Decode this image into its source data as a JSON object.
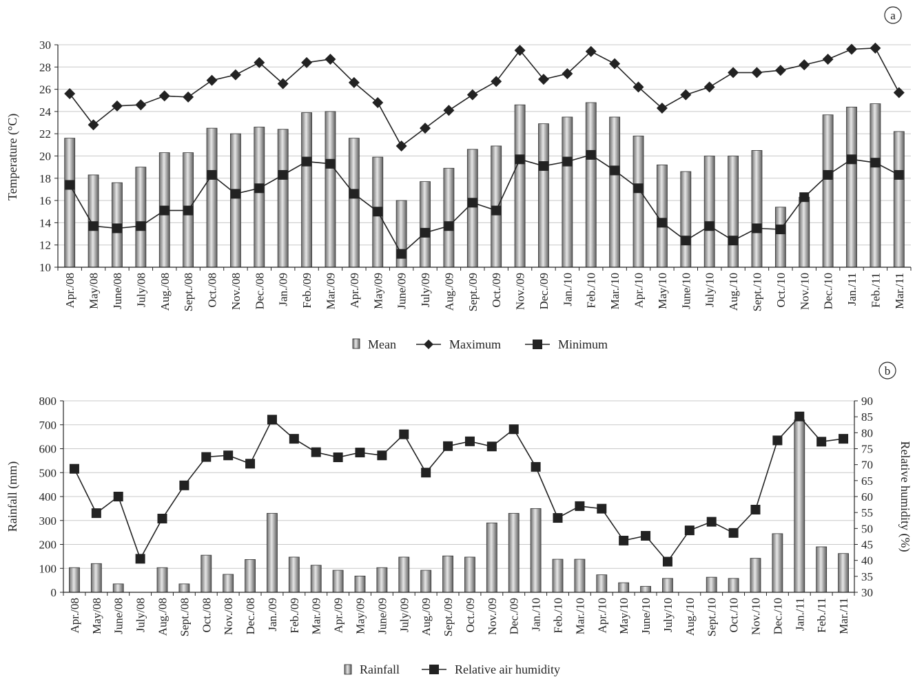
{
  "chart_data": [
    {
      "type": "bar",
      "panel_label": "a",
      "categories": [
        "Apr./08",
        "May/08",
        "June/08",
        "July/08",
        "Aug./08",
        "Sept./08",
        "Oct./08",
        "Nov./08",
        "Dec./08",
        "Jan./09",
        "Feb./09",
        "Mar./09",
        "Apr./09",
        "May/09",
        "June/09",
        "July/09",
        "Aug./09",
        "Sept./09",
        "Oct./09",
        "Nov./09",
        "Dec./09",
        "Jan./10",
        "Feb./10",
        "Mar./10",
        "Apr./10",
        "May/10",
        "June/10",
        "July/10",
        "Aug./10",
        "Sept./10",
        "Oct./10",
        "Nov./10",
        "Dec./10",
        "Jan./11",
        "Feb./11",
        "Mar./11"
      ],
      "series": [
        {
          "name": "Mean",
          "type": "bar",
          "color": "#9a9a9a",
          "values": [
            21.6,
            18.3,
            17.6,
            19.0,
            20.3,
            20.3,
            22.5,
            22.0,
            22.6,
            22.4,
            23.9,
            24.0,
            21.6,
            19.9,
            16.0,
            17.7,
            18.9,
            20.6,
            20.9,
            24.6,
            22.9,
            23.5,
            24.8,
            23.5,
            21.8,
            19.2,
            18.6,
            20.0,
            20.0,
            20.5,
            15.4,
            16.3,
            23.7,
            24.4,
            24.7,
            22.2
          ]
        },
        {
          "name": "Maximum",
          "type": "line",
          "marker": "diamond",
          "color": "#222222",
          "values": [
            25.6,
            22.8,
            24.5,
            24.6,
            25.4,
            25.3,
            26.8,
            27.3,
            28.4,
            26.5,
            28.4,
            28.7,
            26.6,
            24.8,
            20.9,
            22.5,
            24.1,
            25.5,
            26.7,
            29.5,
            26.9,
            27.4,
            29.4,
            28.3,
            26.2,
            24.3,
            25.5,
            26.2,
            27.5,
            27.5,
            27.7,
            28.2,
            28.7,
            29.6,
            29.7,
            25.7
          ]
        },
        {
          "name": "Minimum",
          "type": "line",
          "marker": "square",
          "color": "#222222",
          "values": [
            17.4,
            13.7,
            13.5,
            13.7,
            15.1,
            15.1,
            18.3,
            16.6,
            17.1,
            18.3,
            19.5,
            19.3,
            16.6,
            15.0,
            11.2,
            13.1,
            13.7,
            15.8,
            15.1,
            19.7,
            19.1,
            19.5,
            20.1,
            18.7,
            17.1,
            14.0,
            12.4,
            13.7,
            12.4,
            13.5,
            13.4,
            16.3,
            18.3,
            19.7,
            19.4,
            18.3
          ]
        }
      ],
      "ylabel": "Temperature (°C)",
      "ylim": [
        10,
        30
      ],
      "yticks": [
        10,
        12,
        14,
        16,
        18,
        20,
        22,
        24,
        26,
        28,
        30
      ],
      "grid": true,
      "legend": "bottom-center"
    },
    {
      "type": "bar",
      "panel_label": "b",
      "categories": [
        "Apr./08",
        "May/08",
        "June/08",
        "July/08",
        "Aug./08",
        "Sept./08",
        "Oct./08",
        "Nov./08",
        "Dec./08",
        "Jan./09",
        "Feb./09",
        "Mar./09",
        "Apr./09",
        "May/09",
        "June/09",
        "July/09",
        "Aug./09",
        "Sept./09",
        "Oct./09",
        "Nov./09",
        "Dec./09",
        "Jan./10",
        "Feb./10",
        "Mar./10",
        "Apr./10",
        "May/10",
        "June/10",
        "July/10",
        "Aug./10",
        "Sept./10",
        "Oct./10",
        "Nov./10",
        "Dec./10",
        "Jan./11",
        "Feb./11",
        "Mar./11"
      ],
      "series": [
        {
          "name": "Rainfall",
          "type": "bar",
          "axis": "left",
          "color": "#9a9a9a",
          "values": [
            103,
            120,
            35,
            0,
            103,
            35,
            155,
            75,
            137,
            330,
            147,
            113,
            92,
            68,
            103,
            147,
            92,
            152,
            147,
            290,
            330,
            350,
            138,
            138,
            73,
            40,
            25,
            58,
            0,
            63,
            58,
            142,
            245,
            720,
            190,
            162
          ]
        },
        {
          "name": "Relative air humidity",
          "type": "line",
          "axis": "right",
          "marker": "square",
          "color": "#222222",
          "values": [
            68.7,
            54.8,
            60.0,
            40.5,
            53.1,
            63.5,
            72.4,
            72.9,
            70.3,
            84.1,
            78.1,
            73.9,
            72.3,
            73.8,
            72.9,
            79.5,
            67.5,
            75.8,
            77.3,
            75.7,
            81.1,
            69.3,
            53.3,
            57.0,
            56.2,
            46.2,
            47.7,
            39.6,
            49.4,
            52.1,
            48.6,
            55.9,
            77.6,
            85.1,
            77.2,
            78.1
          ]
        }
      ],
      "ylabel": "Rainfall (mm)",
      "ylim": [
        0,
        800
      ],
      "yticks": [
        0,
        100,
        200,
        300,
        400,
        500,
        600,
        700,
        800
      ],
      "y2label": "Relative humidity (%)",
      "y2lim": [
        30,
        90
      ],
      "y2ticks": [
        30,
        35,
        40,
        45,
        50,
        55,
        60,
        65,
        70,
        75,
        80,
        85,
        90
      ],
      "grid": true,
      "legend": "bottom-center"
    }
  ]
}
